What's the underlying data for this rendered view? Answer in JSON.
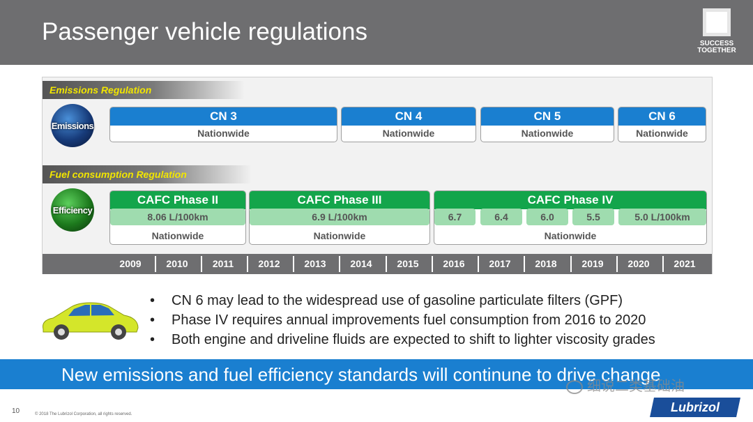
{
  "slide": {
    "title": "Passenger vehicle regulations",
    "logo_text": "SUCCESS TOGETHER",
    "page_number": "10",
    "copyright": "© 2018 The Lubrizol Corporation, all rights reserved.",
    "brand": "Lubrizol",
    "watermark": "细说二类基础油"
  },
  "emissions": {
    "label": "Emissions Regulation",
    "icon_text": "Emissions",
    "phases": [
      {
        "name": "CN 3",
        "scope": "Nationwide"
      },
      {
        "name": "CN 4",
        "scope": "Nationwide"
      },
      {
        "name": "CN 5",
        "scope": "Nationwide"
      },
      {
        "name": "CN 6",
        "scope": "Nationwide"
      }
    ]
  },
  "fuel": {
    "label": "Fuel consumption Regulation",
    "icon_text": "Efficiency",
    "phases": [
      {
        "name": "CAFC Phase II",
        "scope": "Nationwide",
        "values": [
          "8.06 L/100km"
        ]
      },
      {
        "name": "CAFC Phase III",
        "scope": "Nationwide",
        "values": [
          "6.9 L/100km"
        ]
      },
      {
        "name": "CAFC Phase IV",
        "scope": "Nationwide",
        "values": [
          "6.7",
          "6.4",
          "6.0",
          "5.5",
          "5.0 L/100km"
        ]
      }
    ]
  },
  "years": [
    "2009",
    "2010",
    "2011",
    "2012",
    "2013",
    "2014",
    "2015",
    "2016",
    "2017",
    "2018",
    "2019",
    "2020",
    "2021"
  ],
  "bullets": [
    "CN 6 may lead to the widespread use of gasoline particulate filters (GPF)",
    "Phase IV requires annual improvements fuel consumption from 2016 to 2020",
    "Both engine and driveline fluids are expected to shift to lighter viscosity grades"
  ],
  "banner": "New emissions and fuel efficiency standards will continune to drive change",
  "colors": {
    "header": "#6e6e70",
    "emission_blue": "#1a7fd0",
    "fuel_green": "#13a54b",
    "value_green": "#9fdcaf",
    "label_yellow": "#f2e600",
    "car": "#d4e62a"
  }
}
